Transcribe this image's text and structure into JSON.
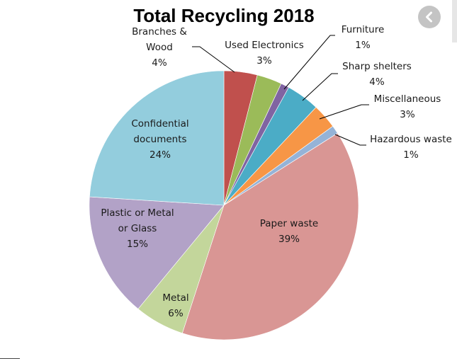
{
  "chart_data": {
    "type": "pie",
    "title": "Total Recycling 2018",
    "slices": [
      {
        "label": "Branches & Wood",
        "display": [
          "Branches &",
          "Wood"
        ],
        "percent_label": "4%",
        "value": 4,
        "color": "#c0504d"
      },
      {
        "label": "Used Electronics",
        "display": [
          "Used Electronics"
        ],
        "percent_label": "3%",
        "value": 3,
        "color": "#9bbb59"
      },
      {
        "label": "Furniture",
        "display": [
          "Furniture"
        ],
        "percent_label": "1%",
        "value": 1,
        "color": "#8064a2"
      },
      {
        "label": "Sharp shelters",
        "display": [
          "Sharp shelters"
        ],
        "percent_label": "4%",
        "value": 4,
        "color": "#4bacc6"
      },
      {
        "label": "Miscellaneous",
        "display": [
          "Miscellaneous"
        ],
        "percent_label": "3%",
        "value": 3,
        "color": "#f79646"
      },
      {
        "label": "Hazardous waste",
        "display": [
          "Hazardous waste"
        ],
        "percent_label": "1%",
        "value": 1,
        "color": "#95b3d7"
      },
      {
        "label": "Paper waste",
        "display": [
          "Paper waste"
        ],
        "percent_label": "39%",
        "value": 39,
        "color": "#d99694"
      },
      {
        "label": "Metal",
        "display": [
          "Metal"
        ],
        "percent_label": "6%",
        "value": 6,
        "color": "#c3d69b"
      },
      {
        "label": "Plastic or Metal or Glass",
        "display": [
          "Plastic or Metal",
          "or Glass"
        ],
        "percent_label": "15%",
        "value": 15,
        "color": "#b2a2c7"
      },
      {
        "label": "Confidential documents",
        "display": [
          "Confidential",
          "documents"
        ],
        "percent_label": "24%",
        "value": 24,
        "color": "#93cddd"
      }
    ],
    "start_angle_deg": 0,
    "direction": "clockwise",
    "legend": "none"
  },
  "nav": {
    "back_icon": "chevron-left-icon"
  }
}
